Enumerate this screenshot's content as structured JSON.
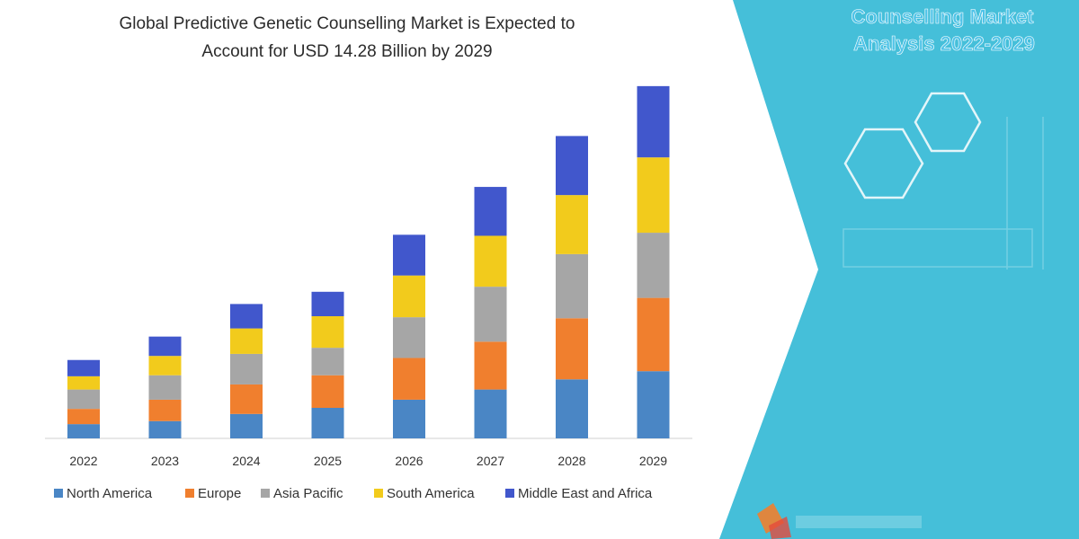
{
  "chart_data": {
    "type": "bar",
    "stacked": true,
    "title_lines": [
      "Global Predictive Genetic Counselling Market is Expected to",
      "Account for USD 14.28 Billion by 2029"
    ],
    "categories": [
      "2022",
      "2023",
      "2024",
      "2025",
      "2026",
      "2027",
      "2028",
      "2029"
    ],
    "series": [
      {
        "name": "North America",
        "color": "#4a86c5",
        "values": [
          14,
          17,
          24,
          30,
          38,
          48,
          58,
          66
        ]
      },
      {
        "name": "Europe",
        "color": "#f07f2e",
        "values": [
          15,
          21,
          29,
          32,
          41,
          47,
          60,
          72
        ]
      },
      {
        "name": "Asia Pacific",
        "color": "#a6a6a6",
        "values": [
          19,
          24,
          30,
          27,
          40,
          54,
          63,
          64
        ]
      },
      {
        "name": "South America",
        "color": "#f2cb1c",
        "values": [
          13,
          19,
          25,
          31,
          41,
          50,
          58,
          74
        ]
      },
      {
        "name": "Middle East and Africa",
        "color": "#4157cc",
        "values": [
          16,
          19,
          24,
          24,
          40,
          48,
          58,
          70
        ]
      }
    ],
    "ylim": [
      0,
      360
    ],
    "grid": false,
    "legend_position": "bottom",
    "xlabel": "",
    "ylabel": ""
  },
  "side_panel": {
    "title_lines": [
      "Counselling Market",
      "Analysis 2022-2029"
    ],
    "background": "#45bfd9"
  }
}
